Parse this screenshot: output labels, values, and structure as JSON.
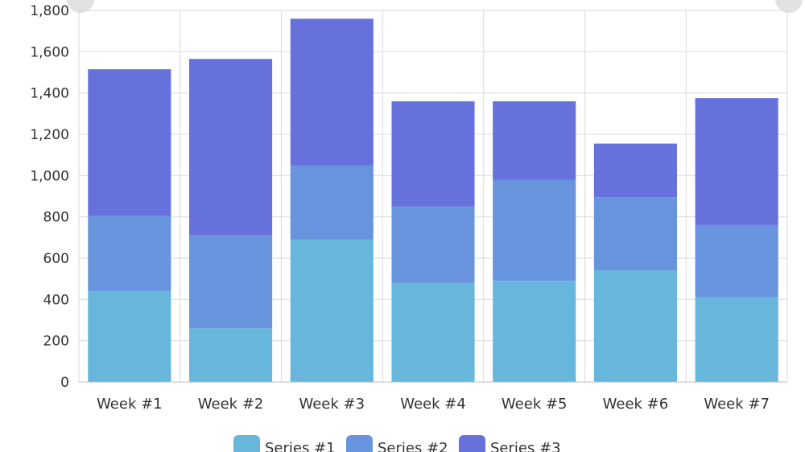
{
  "chart_data": {
    "type": "bar",
    "stacked": true,
    "title": "",
    "xlabel": "",
    "ylabel": "",
    "ylim": [
      0,
      1800
    ],
    "yticks": [
      0,
      200,
      400,
      600,
      800,
      1000,
      1200,
      1400,
      1600,
      1800
    ],
    "ytick_labels": [
      "0",
      "200",
      "400",
      "600",
      "800",
      "1,000",
      "1,200",
      "1,400",
      "1,600",
      "1,800"
    ],
    "categories": [
      "Week #1",
      "Week #2",
      "Week #3",
      "Week #4",
      "Week #5",
      "Week #6",
      "Week #7"
    ],
    "series": [
      {
        "name": "Series #1",
        "color": "#67b6dc",
        "values": [
          440,
          260,
          690,
          480,
          490,
          540,
          410
        ]
      },
      {
        "name": "Series #2",
        "color": "#6794dc",
        "values": [
          365,
          450,
          360,
          370,
          490,
          355,
          350
        ]
      },
      {
        "name": "Series #3",
        "color": "#6771dc",
        "values": [
          710,
          855,
          710,
          510,
          380,
          260,
          615
        ]
      }
    ],
    "grid": true,
    "legend_position": "bottom-center"
  }
}
